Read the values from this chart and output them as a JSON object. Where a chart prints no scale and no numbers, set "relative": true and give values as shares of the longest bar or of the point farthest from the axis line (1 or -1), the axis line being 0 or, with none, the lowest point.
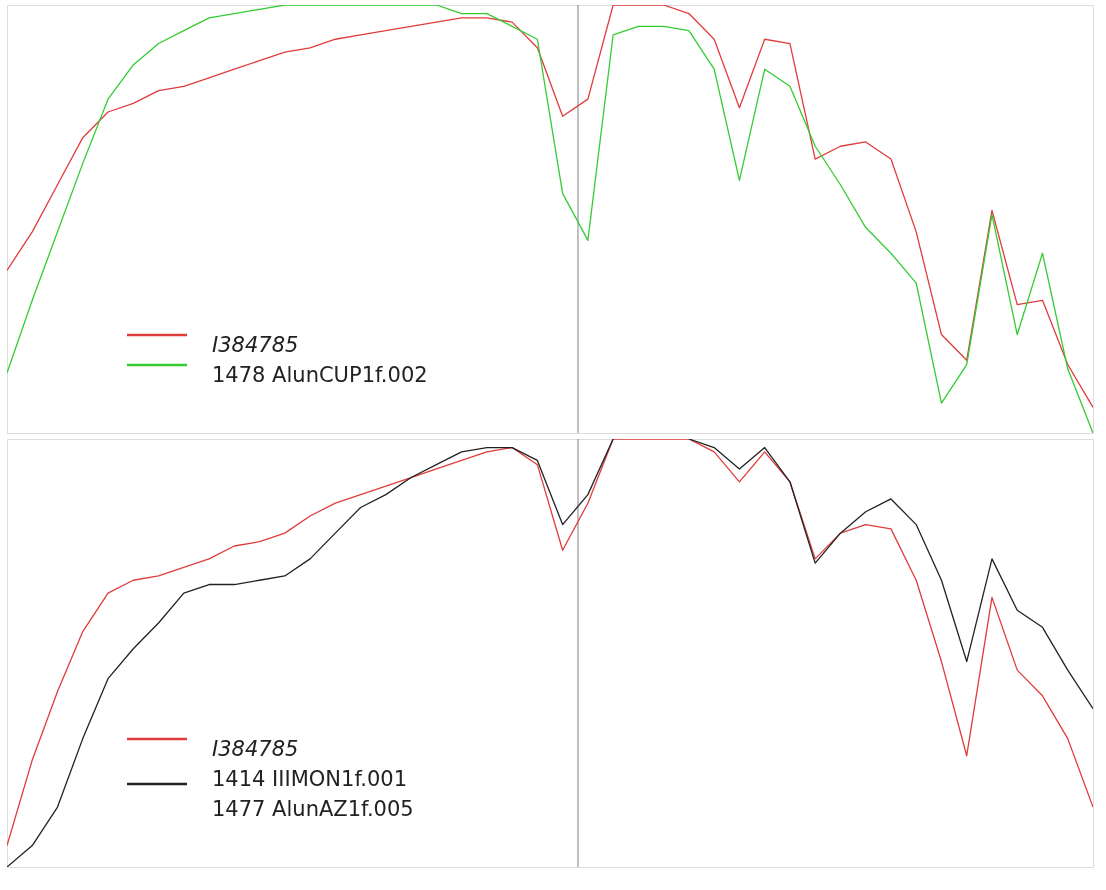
{
  "chart_data": [
    {
      "type": "line",
      "relative": true,
      "legend": "bottom left",
      "categories": [
        null,
        null,
        null,
        null,
        null,
        null,
        null,
        null,
        null,
        null,
        null,
        null,
        null,
        null,
        null,
        null,
        null,
        null,
        null,
        null,
        null,
        null,
        null,
        null,
        null,
        null,
        null,
        null,
        null,
        null,
        null,
        null,
        null,
        null,
        null,
        null,
        null,
        null,
        null,
        null,
        null,
        null,
        null,
        null
      ],
      "series": [
        {
          "name": "I384785",
          "color": "#e03c3c",
          "values": [
            0.38,
            0.47,
            0.58,
            0.69,
            0.75,
            0.77,
            0.8,
            0.81,
            0.83,
            0.85,
            0.87,
            0.89,
            0.9,
            0.92,
            0.93,
            0.94,
            0.95,
            0.96,
            0.97,
            0.97,
            0.96,
            0.9,
            0.74,
            0.78,
            1.0,
            1.0,
            1.0,
            0.98,
            0.92,
            0.76,
            0.92,
            0.91,
            0.64,
            0.67,
            0.68,
            0.64,
            0.47,
            0.23,
            0.17,
            0.52,
            0.3,
            0.31,
            0.16,
            0.06
          ]
        },
        {
          "name": "1478 AlunCUP1f.002",
          "color": "#33cc33",
          "values": [
            0.14,
            0.31,
            0.47,
            0.63,
            0.78,
            0.86,
            0.91,
            0.94,
            0.97,
            0.98,
            0.99,
            1.0,
            1.0,
            1.0,
            1.0,
            1.0,
            1.0,
            1.0,
            0.98,
            0.98,
            0.95,
            0.92,
            0.56,
            0.45,
            0.93,
            0.95,
            0.95,
            0.94,
            0.85,
            0.59,
            0.85,
            0.81,
            0.67,
            0.58,
            0.48,
            0.42,
            0.35,
            0.07,
            0.16,
            0.51,
            0.23,
            0.42,
            0.15,
            0.0
          ]
        }
      ]
    },
    {
      "type": "line",
      "relative": true,
      "legend": "bottom left",
      "categories": [
        null,
        null,
        null,
        null,
        null,
        null,
        null,
        null,
        null,
        null,
        null,
        null,
        null,
        null,
        null,
        null,
        null,
        null,
        null,
        null,
        null,
        null,
        null,
        null,
        null,
        null,
        null,
        null,
        null,
        null,
        null,
        null,
        null,
        null,
        null,
        null,
        null,
        null,
        null,
        null,
        null,
        null,
        null,
        null
      ],
      "series": [
        {
          "name": "I384785",
          "color": "#e03c3c",
          "values": [
            0.05,
            0.25,
            0.41,
            0.55,
            0.64,
            0.67,
            0.68,
            0.7,
            0.72,
            0.75,
            0.76,
            0.78,
            0.82,
            0.85,
            0.87,
            0.89,
            0.91,
            0.93,
            0.95,
            0.97,
            0.98,
            0.94,
            0.74,
            0.85,
            1.0,
            1.0,
            1.0,
            1.0,
            0.97,
            0.9,
            0.97,
            0.9,
            0.72,
            0.78,
            0.8,
            0.79,
            0.67,
            0.48,
            0.26,
            0.63,
            0.46,
            0.4,
            0.3,
            0.14
          ]
        },
        {
          "name": "1414 IIIMON1f.001\n1477 AlunAZ1f.005",
          "color": "#222222",
          "values": [
            0.0,
            0.05,
            0.14,
            0.3,
            0.44,
            0.51,
            0.57,
            0.64,
            0.66,
            0.66,
            0.67,
            0.68,
            0.72,
            0.78,
            0.84,
            0.87,
            0.91,
            0.94,
            0.97,
            0.98,
            0.98,
            0.95,
            0.8,
            0.87,
            1.0,
            null,
            null,
            1.0,
            0.98,
            0.93,
            0.98,
            0.9,
            0.71,
            0.78,
            0.83,
            0.86,
            0.8,
            0.67,
            0.48,
            0.72,
            0.6,
            0.56,
            0.46,
            0.37
          ]
        }
      ]
    }
  ]
}
